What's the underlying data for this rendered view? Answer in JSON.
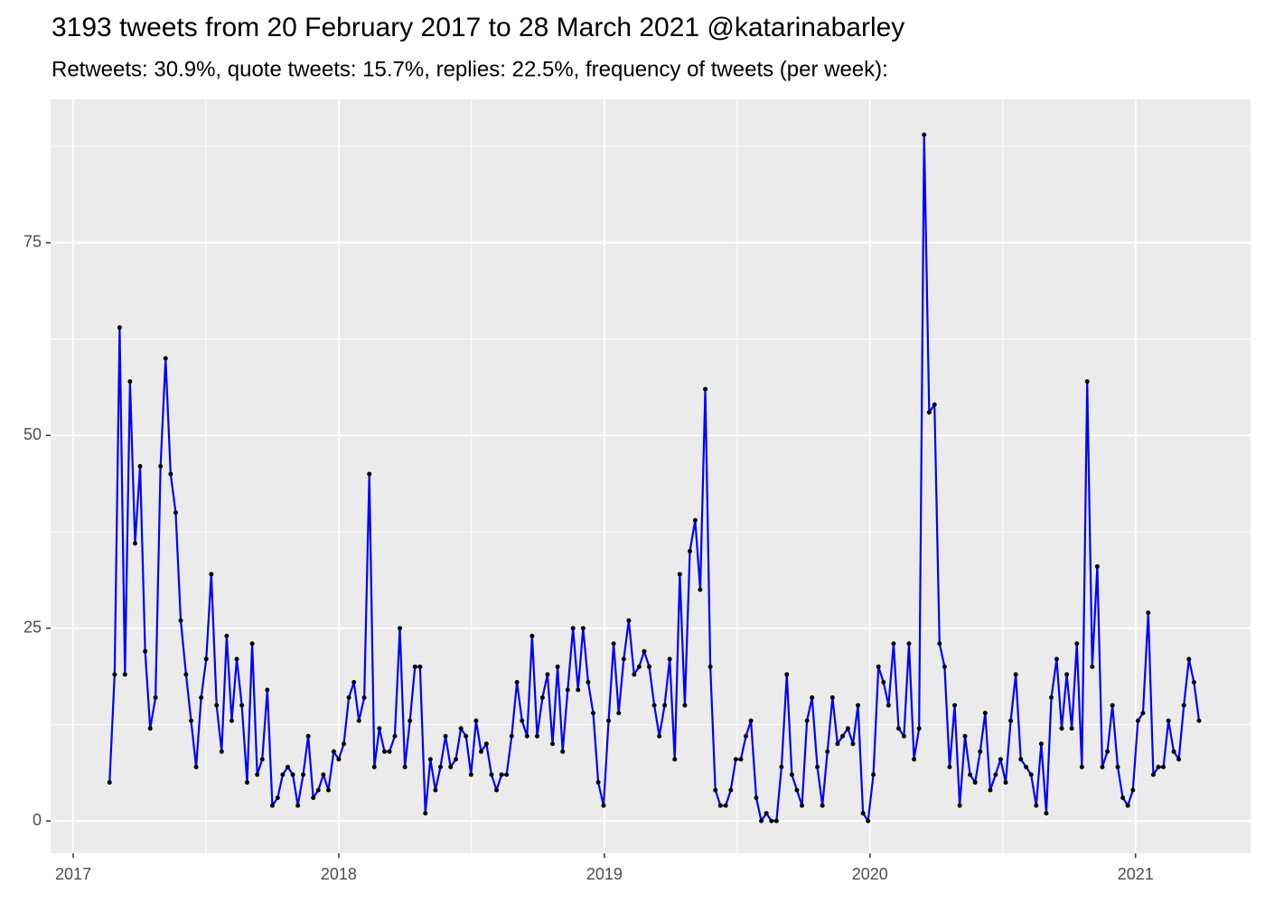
{
  "chart_data": {
    "type": "line",
    "title": "3193 tweets from 20 February 2017 to 28 March 2021 @katarinabarley",
    "subtitle": "Retweets: 30.9%, quote tweets: 15.7%, replies: 22.5%, frequency of tweets (per week):",
    "x": [
      2017.137,
      2017.156,
      2017.175,
      2017.195,
      2017.214,
      2017.233,
      2017.252,
      2017.271,
      2017.29,
      2017.31,
      2017.329,
      2017.348,
      2017.367,
      2017.386,
      2017.405,
      2017.425,
      2017.444,
      2017.463,
      2017.482,
      2017.501,
      2017.52,
      2017.54,
      2017.559,
      2017.578,
      2017.597,
      2017.616,
      2017.635,
      2017.655,
      2017.674,
      2017.693,
      2017.712,
      2017.731,
      2017.75,
      2017.77,
      2017.789,
      2017.808,
      2017.827,
      2017.846,
      2017.866,
      2017.885,
      2017.904,
      2017.923,
      2017.942,
      2017.961,
      2017.981,
      2018.0,
      2018.019,
      2018.038,
      2018.057,
      2018.076,
      2018.096,
      2018.115,
      2018.134,
      2018.153,
      2018.172,
      2018.191,
      2018.211,
      2018.23,
      2018.249,
      2018.268,
      2018.287,
      2018.306,
      2018.326,
      2018.345,
      2018.364,
      2018.383,
      2018.402,
      2018.421,
      2018.441,
      2018.46,
      2018.479,
      2018.498,
      2018.517,
      2018.536,
      2018.556,
      2018.575,
      2018.594,
      2018.613,
      2018.632,
      2018.651,
      2018.671,
      2018.69,
      2018.709,
      2018.728,
      2018.747,
      2018.767,
      2018.786,
      2018.805,
      2018.824,
      2018.843,
      2018.862,
      2018.882,
      2018.901,
      2018.92,
      2018.939,
      2018.958,
      2018.977,
      2018.997,
      2019.016,
      2019.035,
      2019.054,
      2019.073,
      2019.092,
      2019.112,
      2019.131,
      2019.15,
      2019.169,
      2019.188,
      2019.207,
      2019.227,
      2019.246,
      2019.265,
      2019.284,
      2019.303,
      2019.322,
      2019.342,
      2019.361,
      2019.38,
      2019.399,
      2019.418,
      2019.437,
      2019.457,
      2019.476,
      2019.495,
      2019.514,
      2019.533,
      2019.552,
      2019.572,
      2019.591,
      2019.61,
      2019.629,
      2019.648,
      2019.667,
      2019.687,
      2019.706,
      2019.725,
      2019.744,
      2019.763,
      2019.782,
      2019.802,
      2019.821,
      2019.84,
      2019.859,
      2019.878,
      2019.897,
      2019.917,
      2019.936,
      2019.955,
      2019.974,
      2019.993,
      2020.013,
      2020.032,
      2020.051,
      2020.07,
      2020.089,
      2020.108,
      2020.128,
      2020.147,
      2020.166,
      2020.185,
      2020.204,
      2020.223,
      2020.243,
      2020.262,
      2020.281,
      2020.3,
      2020.319,
      2020.338,
      2020.358,
      2020.377,
      2020.396,
      2020.415,
      2020.434,
      2020.453,
      2020.473,
      2020.492,
      2020.511,
      2020.53,
      2020.549,
      2020.568,
      2020.588,
      2020.607,
      2020.626,
      2020.645,
      2020.664,
      2020.683,
      2020.703,
      2020.722,
      2020.741,
      2020.76,
      2020.779,
      2020.798,
      2020.818,
      2020.837,
      2020.856,
      2020.875,
      2020.894,
      2020.913,
      2020.933,
      2020.952,
      2020.971,
      2020.99,
      2021.009,
      2021.028,
      2021.048,
      2021.067,
      2021.086,
      2021.105,
      2021.124,
      2021.144,
      2021.163,
      2021.182,
      2021.201,
      2021.22,
      2021.239
    ],
    "series": [
      {
        "color": "#0000ff",
        "values": [
          5,
          19,
          64,
          19,
          57,
          36,
          46,
          22,
          12,
          16,
          46,
          60,
          45,
          40,
          26,
          19,
          13,
          7,
          16,
          21,
          32,
          15,
          9,
          24,
          13,
          21,
          15,
          5,
          23,
          6,
          8,
          17,
          2,
          3,
          6,
          7,
          6,
          2,
          6,
          11,
          3,
          4,
          6,
          4,
          9,
          8,
          10,
          16,
          18,
          13,
          16,
          45,
          7,
          12,
          9,
          9,
          11,
          25,
          7,
          13,
          20,
          20,
          1,
          8,
          4,
          7,
          11,
          7,
          8,
          12,
          11,
          6,
          13,
          9,
          10,
          6,
          4,
          6,
          6,
          11,
          18,
          13,
          11,
          24,
          11,
          16,
          19,
          10,
          20,
          9,
          17,
          25,
          17,
          25,
          18,
          14,
          5,
          2,
          13,
          23,
          14,
          21,
          26,
          19,
          20,
          22,
          20,
          15,
          11,
          15,
          21,
          8,
          32,
          15,
          35,
          39,
          30,
          56,
          20,
          4,
          2,
          2,
          4,
          8,
          8,
          11,
          13,
          3,
          0,
          1,
          0,
          0,
          7,
          19,
          6,
          4,
          2,
          13,
          16,
          7,
          2,
          9,
          16,
          10,
          11,
          12,
          10,
          15,
          1,
          0,
          6,
          20,
          18,
          15,
          23,
          12,
          11,
          23,
          8,
          12,
          89,
          53,
          54,
          23,
          20,
          7,
          15,
          2,
          11,
          6,
          5,
          9,
          14,
          4,
          6,
          8,
          5,
          13,
          19,
          8,
          7,
          6,
          2,
          10,
          1,
          16,
          21,
          12,
          19,
          12,
          23,
          7,
          57,
          20,
          33,
          7,
          9,
          15,
          7,
          3,
          2,
          4,
          13,
          14,
          27,
          6,
          7,
          7,
          13,
          9,
          8,
          15,
          21,
          18,
          13
        ]
      }
    ],
    "point_color": "#000000",
    "xlim": [
      2016.915,
      2021.433
    ],
    "xticks": [
      2017,
      2018,
      2019,
      2020,
      2021
    ],
    "ylim": [
      -4.2,
      93.6
    ],
    "yticks": [
      0,
      25,
      50,
      75
    ],
    "grid": true
  }
}
